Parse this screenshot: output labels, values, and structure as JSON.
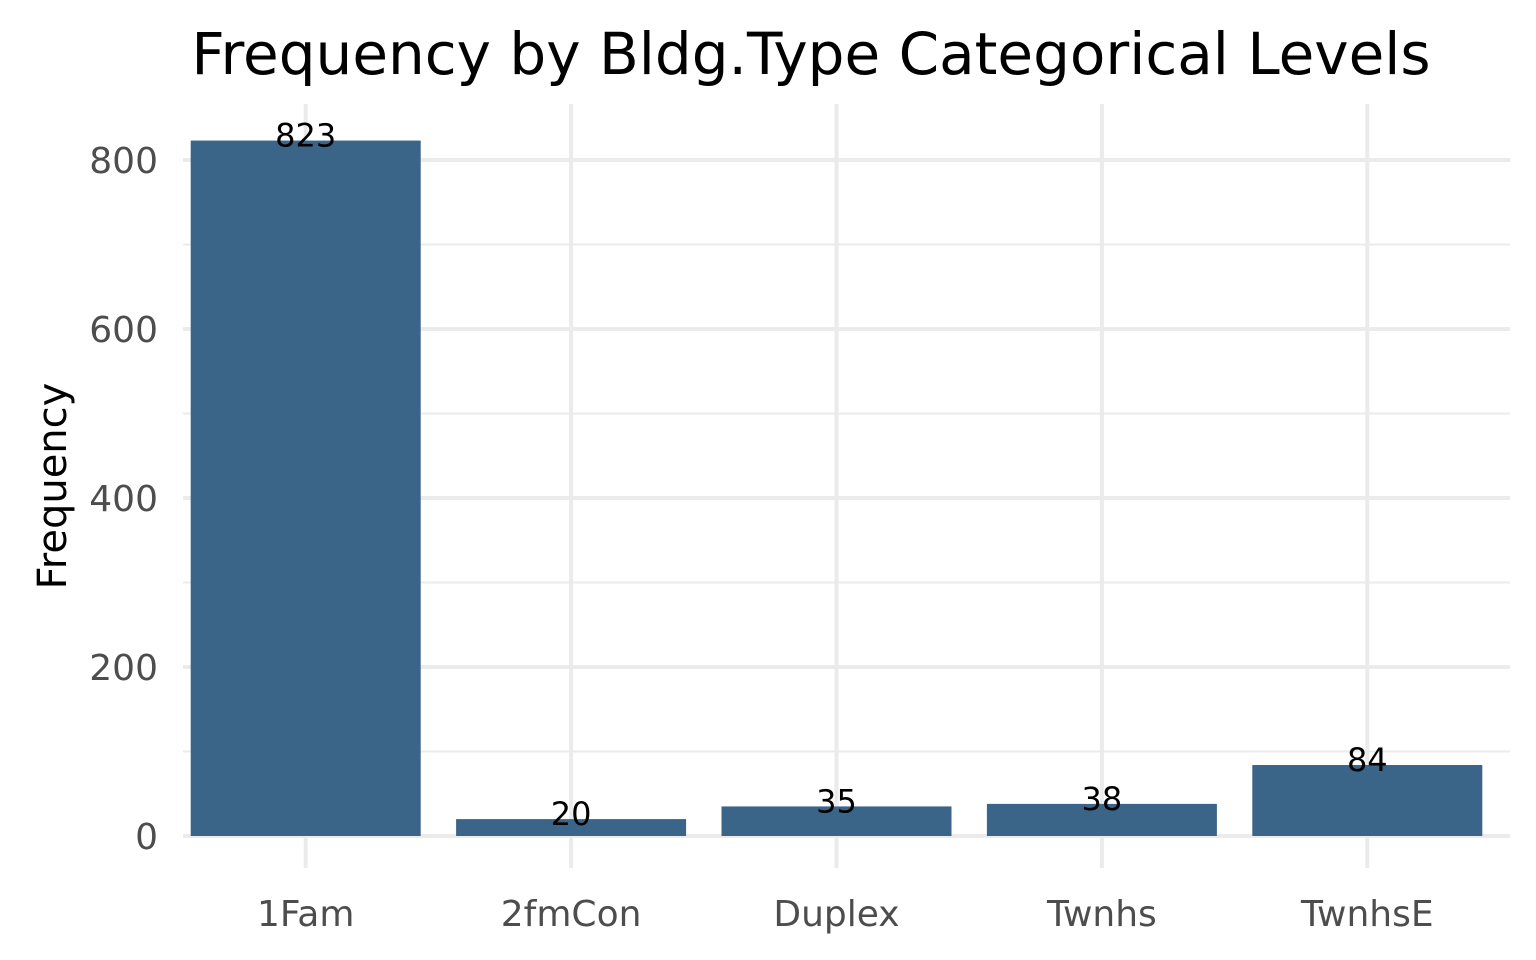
{
  "chart_data": {
    "type": "bar",
    "title": "Frequency by Bldg.Type Categorical Levels",
    "xlabel": "",
    "ylabel": "Frequency",
    "categories": [
      "1Fam",
      "2fmCon",
      "Duplex",
      "Twnhs",
      "TwnhsE"
    ],
    "values": [
      823,
      20,
      35,
      38,
      84
    ],
    "data_labels": [
      "823",
      "20",
      "35",
      "38",
      "84"
    ],
    "ylim": [
      0,
      860
    ],
    "yticks": [
      0,
      200,
      400,
      600,
      800
    ],
    "ytick_labels": [
      "0",
      "200",
      "400",
      "600",
      "800"
    ],
    "yminor_ticks": [
      100,
      300,
      500,
      700
    ],
    "grid": true,
    "legend": "none",
    "bar_color": "#3a6589"
  }
}
